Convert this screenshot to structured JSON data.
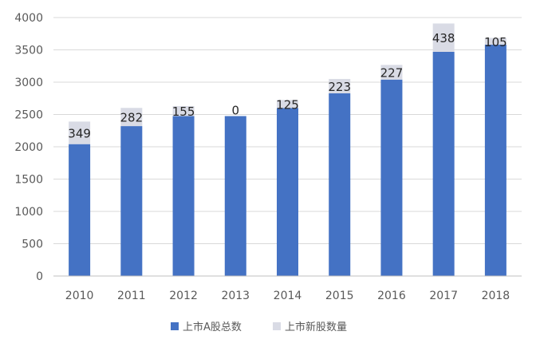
{
  "chart_data": {
    "type": "bar",
    "stacked": true,
    "categories": [
      "2010",
      "2011",
      "2012",
      "2013",
      "2014",
      "2015",
      "2016",
      "2017",
      "2018"
    ],
    "series": [
      {
        "name": "上市A股总数",
        "color": "#4472C4",
        "values": [
          2041,
          2320,
          2475,
          2475,
          2600,
          2827,
          3040,
          3470,
          3580
        ]
      },
      {
        "name": "上市新股数量",
        "color": "#D9DBE5",
        "values": [
          349,
          282,
          155,
          0,
          125,
          223,
          227,
          438,
          105
        ]
      }
    ],
    "data_labels": [
      "349",
      "282",
      "155",
      "0",
      "125",
      "223",
      "227",
      "438",
      "105"
    ],
    "ylim": [
      0,
      4000
    ],
    "y_ticks": [
      0,
      500,
      1000,
      1500,
      2000,
      2500,
      3000,
      3500,
      4000
    ],
    "grid": true,
    "legend_position": "bottom"
  }
}
